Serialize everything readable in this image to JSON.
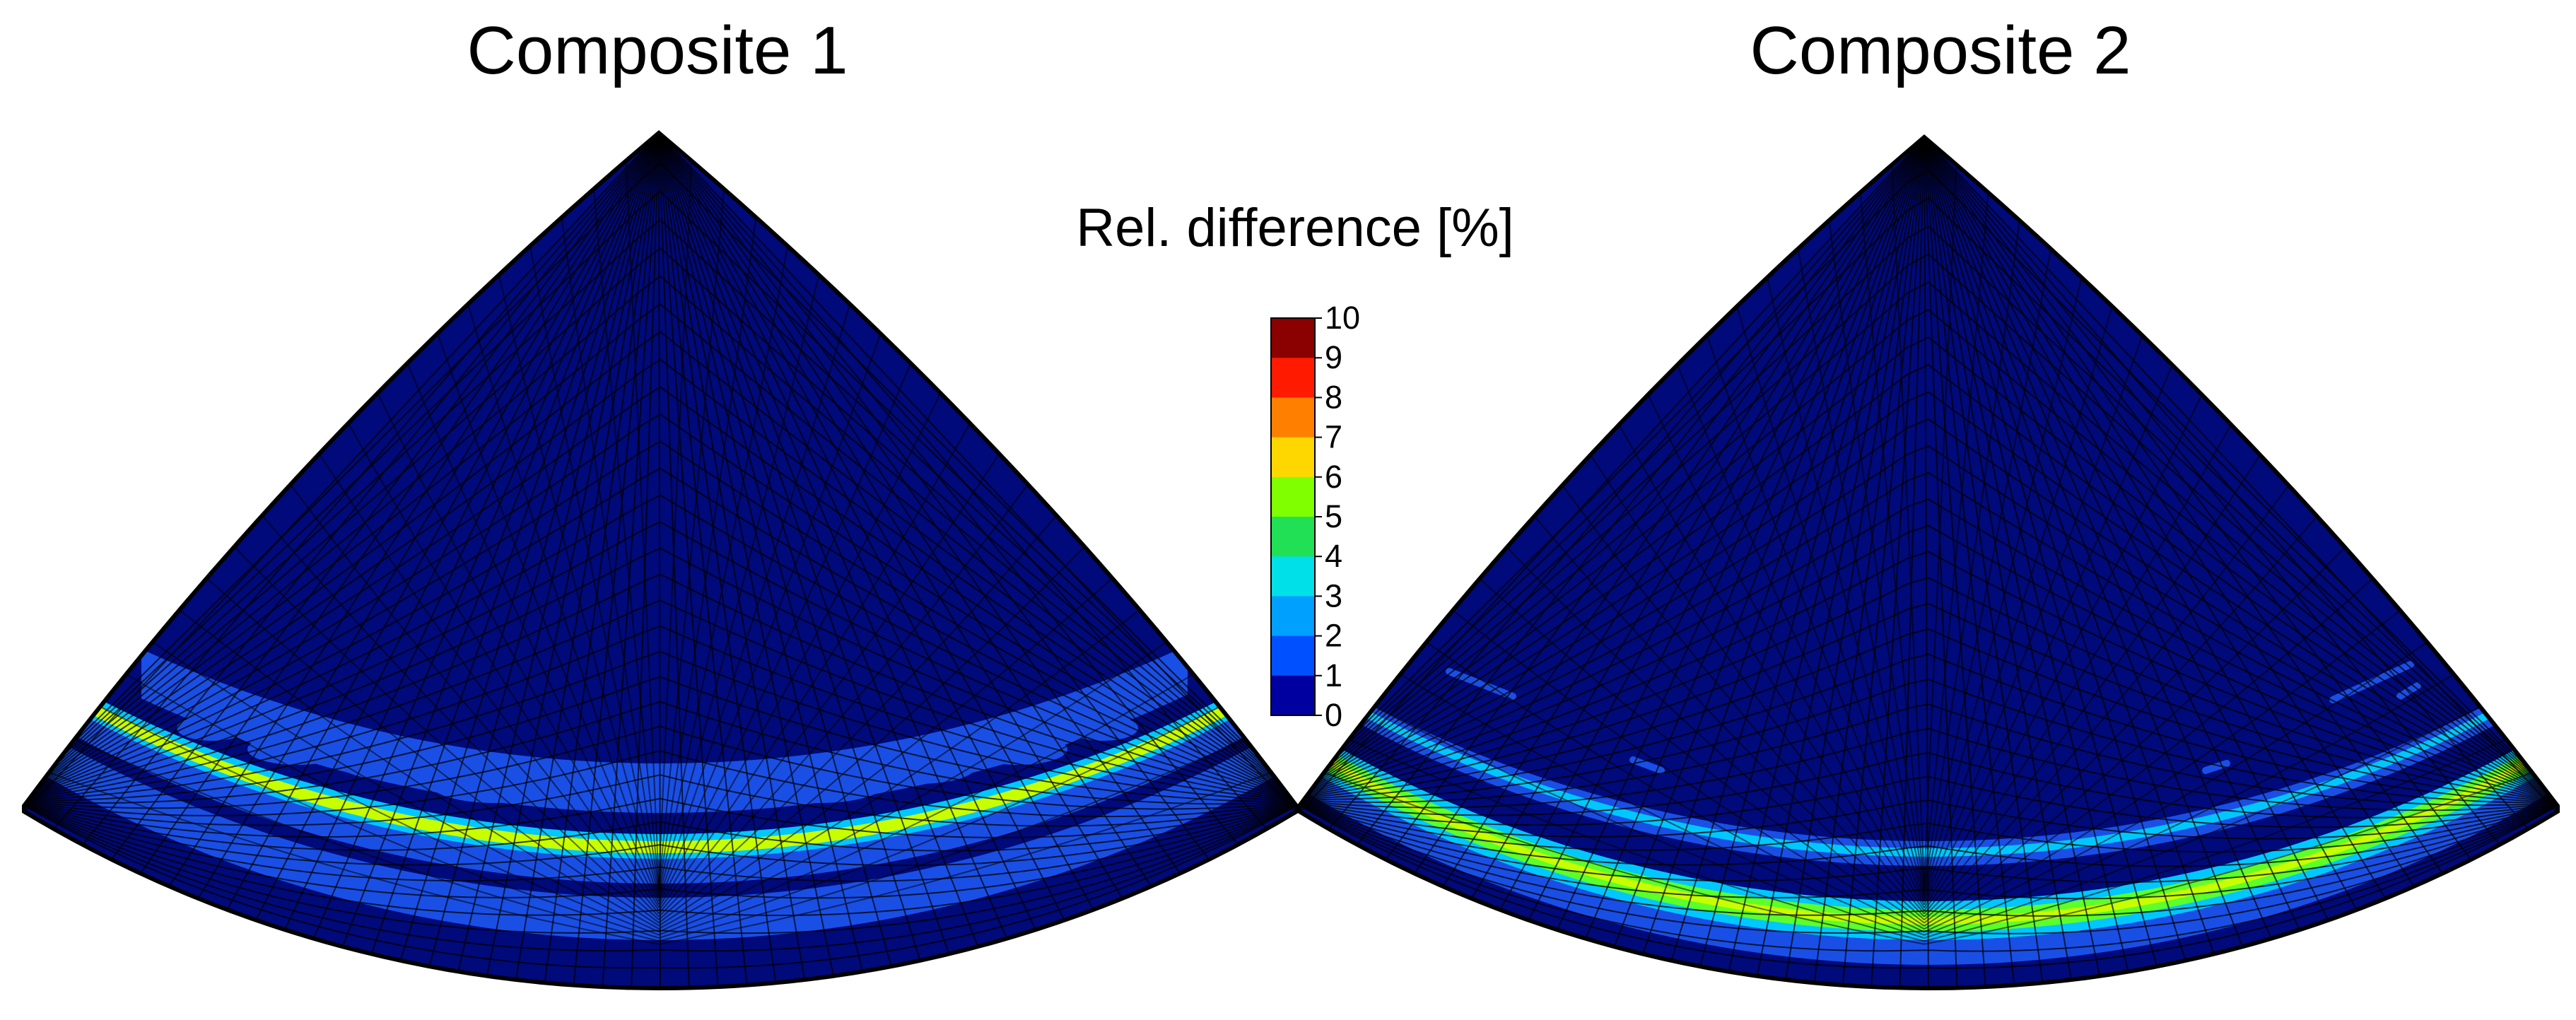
{
  "panels": [
    {
      "title": "Composite 1",
      "highlight_level": 5
    },
    {
      "title": "Composite 2",
      "highlight_level": 5
    }
  ],
  "colorbar": {
    "title": "Rel. difference [%]",
    "min": 0,
    "max": 10,
    "ticks": [
      "10",
      "9",
      "8",
      "7",
      "6",
      "5",
      "4",
      "3",
      "2",
      "1",
      "0"
    ],
    "colors": [
      "#8b0000",
      "#ff1a00",
      "#ff7f00",
      "#ffd700",
      "#7fff00",
      "#22e055",
      "#00e0e8",
      "#00a0ff",
      "#0050ff",
      "#0000a0"
    ]
  },
  "colors": {
    "background": "#000a7a",
    "mesh": "#000000",
    "band_blue": "#1a4fe6",
    "band_cyan": "#00c8ff",
    "band_green": "#5cff2a",
    "band_yellow": "#c8ff00"
  }
}
